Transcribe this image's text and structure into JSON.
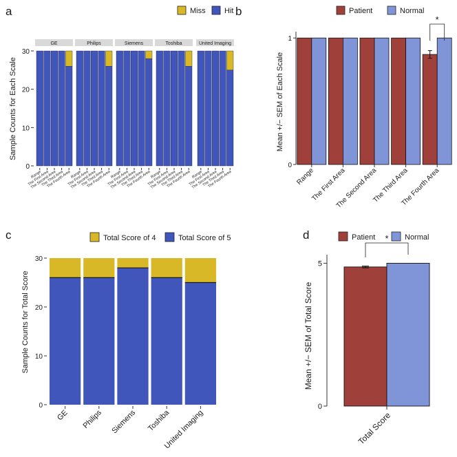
{
  "colors": {
    "miss": "#d9b827",
    "hit": "#4156bb",
    "patient": "#a0403b",
    "normal": "#8095d8",
    "strip": "#d9d9d9"
  },
  "chart_data": [
    {
      "id": "a",
      "panel_label": "a",
      "type": "bar",
      "stacked": true,
      "facets": [
        "GE",
        "Philips",
        "Siemens",
        "Toshiba",
        "United Imaging"
      ],
      "categories": [
        "Range",
        "The First Area",
        "The Second Area",
        "The Third Area",
        "The Fourth Area"
      ],
      "series": [
        {
          "name": "Miss",
          "values": [
            [
              0,
              0,
              0,
              0,
              4
            ],
            [
              0,
              0,
              0,
              0,
              4
            ],
            [
              0,
              0,
              0,
              0,
              2
            ],
            [
              0,
              0,
              0,
              0,
              4
            ],
            [
              0,
              0,
              0,
              0,
              5
            ]
          ]
        },
        {
          "name": "Hit",
          "values": [
            [
              30,
              30,
              30,
              30,
              26
            ],
            [
              30,
              30,
              30,
              30,
              26
            ],
            [
              30,
              30,
              30,
              30,
              28
            ],
            [
              30,
              30,
              30,
              30,
              26
            ],
            [
              30,
              30,
              30,
              30,
              25
            ]
          ]
        }
      ],
      "legend_order": [
        "Miss",
        "Hit"
      ],
      "ylabel": "Sample Counts for Each Scale",
      "yticks": [
        0,
        10,
        20,
        30
      ],
      "ylim": [
        0,
        30
      ],
      "legend": "top-right"
    },
    {
      "id": "b",
      "panel_label": "b",
      "type": "bar",
      "grouped": true,
      "categories": [
        "Range",
        "The First Area",
        "The Second Area",
        "The Third Area",
        "The Fourth Area"
      ],
      "series": [
        {
          "name": "Patient",
          "values": [
            1,
            1,
            1,
            1,
            0.87
          ],
          "sem": [
            0,
            0,
            0,
            0,
            0.03
          ]
        },
        {
          "name": "Normal",
          "values": [
            1,
            1,
            1,
            1,
            1
          ],
          "sem": [
            0,
            0,
            0,
            0,
            0
          ]
        }
      ],
      "ylabel": "Mean +/− SEM of Each Scale",
      "yticks": [
        0,
        1
      ],
      "ylim": [
        0,
        1.05
      ],
      "annotations": [
        {
          "category": "The Fourth Area",
          "text": "*"
        }
      ],
      "legend": "top"
    },
    {
      "id": "c",
      "panel_label": "c",
      "type": "bar",
      "stacked": true,
      "categories": [
        "GE",
        "Philips",
        "Siemens",
        "Toshiba",
        "United Imaging"
      ],
      "series": [
        {
          "name": "Total Score of 4",
          "values": [
            4,
            4,
            2,
            4,
            5
          ]
        },
        {
          "name": "Total Score of 5",
          "values": [
            26,
            26,
            28,
            26,
            25
          ]
        }
      ],
      "ylabel": "Sample Counts for Total Score",
      "yticks": [
        0,
        10,
        20,
        30
      ],
      "ylim": [
        0,
        30
      ],
      "legend": "top"
    },
    {
      "id": "d",
      "panel_label": "d",
      "type": "bar",
      "grouped": true,
      "categories": [
        "Total Score"
      ],
      "series": [
        {
          "name": "Patient",
          "values": [
            4.87
          ],
          "sem": [
            0.03
          ]
        },
        {
          "name": "Normal",
          "values": [
            5
          ],
          "sem": [
            0
          ]
        }
      ],
      "ylabel": "Mean +/− SEM of Total Score",
      "yticks": [
        0,
        5
      ],
      "ylim": [
        0,
        5.3
      ],
      "annotations": [
        {
          "category": "Total Score",
          "text": "*"
        }
      ],
      "legend": "top"
    }
  ]
}
